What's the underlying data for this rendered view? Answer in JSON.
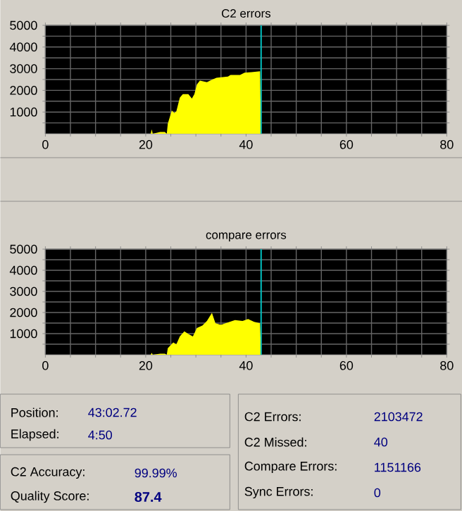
{
  "chart_data": [
    {
      "type": "area",
      "title": "C2 errors",
      "color": "#ffff00",
      "grid": true,
      "x": [
        0,
        21.0,
        21.2,
        21.4,
        22.9,
        23.8,
        24.2,
        24.4,
        25.2,
        25.7,
        26.1,
        26.8,
        27.4,
        28.5,
        29.2,
        29.7,
        30.2,
        30.8,
        32.2,
        33.2,
        34.1,
        36.4,
        36.9,
        38.8,
        39.7,
        41.1,
        42.8,
        43.0
      ],
      "values": [
        0,
        0,
        200,
        0,
        80,
        80,
        0,
        460,
        1070,
        960,
        1030,
        1660,
        1830,
        1830,
        1620,
        1830,
        2270,
        2450,
        2380,
        2490,
        2580,
        2640,
        2710,
        2710,
        2820,
        2840,
        2880,
        0
      ],
      "xlim": [
        0,
        80
      ],
      "ylim": [
        0,
        5000
      ],
      "xticks": [
        0,
        {
          "value": 5,
          "label": null
        },
        {
          "value": 10,
          "label": null
        },
        {
          "value": 15,
          "label": null
        },
        20,
        {
          "value": 25,
          "label": null
        },
        {
          "value": 30,
          "label": null
        },
        {
          "value": 35,
          "label": null
        },
        40,
        {
          "value": 45,
          "label": null
        },
        {
          "value": 50,
          "label": null
        },
        {
          "value": 55,
          "label": null
        },
        60,
        {
          "value": 65,
          "label": null
        },
        {
          "value": 70,
          "label": null
        },
        {
          "value": 75,
          "label": null
        },
        80
      ],
      "yticks": [
        {
          "value": 500,
          "label": null
        },
        1000,
        {
          "value": 1500,
          "label": null
        },
        2000,
        {
          "value": 2500,
          "label": null
        },
        3000,
        {
          "value": 3500,
          "label": null
        },
        4000,
        {
          "value": 4500,
          "label": null
        },
        5000
      ],
      "ref_lines": [
        {
          "axis": "x",
          "value": 43,
          "color": "#00c0c0"
        }
      ]
    },
    {
      "type": "area",
      "title": "compare errors",
      "color": "#ffff00",
      "grid": true,
      "x": [
        0,
        21.0,
        21.2,
        21.4,
        22.9,
        23.8,
        24.2,
        24.4,
        25.5,
        26.1,
        26.8,
        27.7,
        28.5,
        29.4,
        30.2,
        31.3,
        32.2,
        33.2,
        33.9,
        35.0,
        35.9,
        37.8,
        39.3,
        40.4,
        41.6,
        42.8,
        43.0
      ],
      "values": [
        0,
        0,
        90,
        0,
        50,
        50,
        0,
        310,
        580,
        490,
        870,
        1110,
        980,
        870,
        1270,
        1380,
        1600,
        1980,
        1490,
        1420,
        1490,
        1640,
        1600,
        1690,
        1560,
        1490,
        0
      ],
      "xlim": [
        0,
        80
      ],
      "ylim": [
        0,
        5000
      ],
      "xticks": [
        0,
        {
          "value": 5,
          "label": null
        },
        {
          "value": 10,
          "label": null
        },
        {
          "value": 15,
          "label": null
        },
        20,
        {
          "value": 25,
          "label": null
        },
        {
          "value": 30,
          "label": null
        },
        {
          "value": 35,
          "label": null
        },
        40,
        {
          "value": 45,
          "label": null
        },
        {
          "value": 50,
          "label": null
        },
        {
          "value": 55,
          "label": null
        },
        60,
        {
          "value": 65,
          "label": null
        },
        {
          "value": 70,
          "label": null
        },
        {
          "value": 75,
          "label": null
        },
        80
      ],
      "yticks": [
        {
          "value": 500,
          "label": null
        },
        1000,
        {
          "value": 1500,
          "label": null
        },
        2000,
        {
          "value": 2500,
          "label": null
        },
        3000,
        {
          "value": 3500,
          "label": null
        },
        4000,
        {
          "value": 4500,
          "label": null
        },
        5000
      ],
      "ref_lines": [
        {
          "axis": "x",
          "value": 43,
          "color": "#00c0c0"
        }
      ]
    },
    {
      "type": "other",
      "annotations": [
        "Position:",
        "43:02.72",
        "Elapsed:",
        "4:50",
        "C2 Accuracy:",
        "99.99%",
        "Quality Score:",
        "87.4",
        "C2 Errors:",
        "2103472",
        "C2 Missed:",
        "40",
        "Compare Errors:",
        "1151166",
        "Sync Errors:",
        "0"
      ]
    }
  ]
}
